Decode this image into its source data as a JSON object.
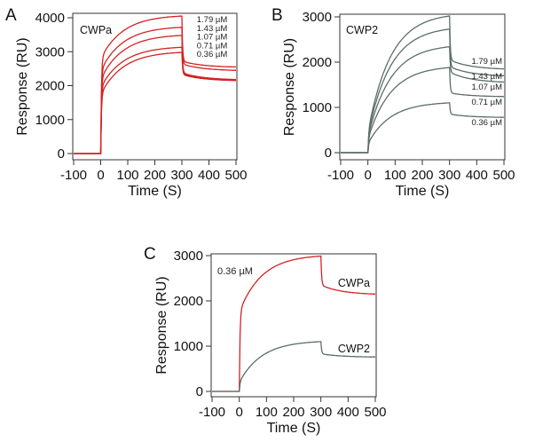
{
  "colors": {
    "cwpa": "#d42222",
    "cwp2": "#5c6e66"
  },
  "chart_data": [
    {
      "panel": "A",
      "type": "line",
      "title": "CWPa",
      "xlabel": "Time (S)",
      "ylabel": "Response (RU)",
      "xlim": [
        -100,
        500
      ],
      "ylim": [
        -60,
        4100
      ],
      "xticks": [
        -100,
        0,
        100,
        200,
        300,
        400,
        500
      ],
      "yticks": [
        0,
        1000,
        2000,
        3000,
        4000
      ],
      "color_key": "cwpa",
      "series": [
        {
          "name": "1.79 µM",
          "plateau_end": 4050,
          "jump": 2800,
          "dissoc_end": 2550,
          "dissoc_start": 2720
        },
        {
          "name": "1.43 µM",
          "plateau_end": 3720,
          "jump": 2450,
          "dissoc_end": 2450,
          "dissoc_start": 2640
        },
        {
          "name": "1.07 µM",
          "plateau_end": 3480,
          "jump": 2200,
          "dissoc_end": 2180,
          "dissoc_start": 2380
        },
        {
          "name": "0.71 µM",
          "plateau_end": 3130,
          "jump": 1950,
          "dissoc_end": 2160,
          "dissoc_start": 2350
        },
        {
          "name": "0.36 µM",
          "plateau_end": 2980,
          "jump": 1750,
          "dissoc_end": 2150,
          "dissoc_start": 2330
        }
      ]
    },
    {
      "panel": "B",
      "type": "line",
      "title": "CWP2",
      "xlabel": "Time (S)",
      "ylabel": "Response (RU)",
      "xlim": [
        -100,
        500
      ],
      "ylim": [
        -60,
        3050
      ],
      "xticks": [
        -100,
        0,
        100,
        200,
        300,
        400,
        500
      ],
      "yticks": [
        0,
        1000,
        2000,
        3000
      ],
      "color_key": "cwp2",
      "series": [
        {
          "name": "1.79 µM",
          "plateau_end": 3020,
          "jump": 450,
          "dissoc_end": 1850,
          "dissoc_start": 2050
        },
        {
          "name": "1.43 µM",
          "plateau_end": 2730,
          "jump": 400,
          "dissoc_end": 1700,
          "dissoc_start": 1900
        },
        {
          "name": "1.07 µM",
          "plateau_end": 2340,
          "jump": 350,
          "dissoc_end": 1560,
          "dissoc_start": 1780
        },
        {
          "name": "0.71 µM",
          "plateau_end": 1880,
          "jump": 300,
          "dissoc_end": 1240,
          "dissoc_start": 1320
        },
        {
          "name": "0.36 µM",
          "plateau_end": 1100,
          "jump": 200,
          "dissoc_end": 780,
          "dissoc_start": 850
        }
      ]
    },
    {
      "panel": "C",
      "type": "line",
      "title": "0.36 µM",
      "xlabel": "Time (S)",
      "ylabel": "Response (RU)",
      "xlim": [
        -100,
        500
      ],
      "ylim": [
        -60,
        3000
      ],
      "xticks": [
        -100,
        0,
        100,
        200,
        300,
        400,
        500
      ],
      "yticks": [
        0,
        1000,
        2000,
        3000
      ],
      "series": [
        {
          "name": "CWPa",
          "color_key": "cwpa",
          "plateau_end": 2990,
          "jump": 1750,
          "dissoc_end": 2150,
          "dissoc_start": 2350
        },
        {
          "name": "CWP2",
          "color_key": "cwp2",
          "plateau_end": 1100,
          "jump": 200,
          "dissoc_end": 760,
          "dissoc_start": 830
        }
      ]
    }
  ]
}
